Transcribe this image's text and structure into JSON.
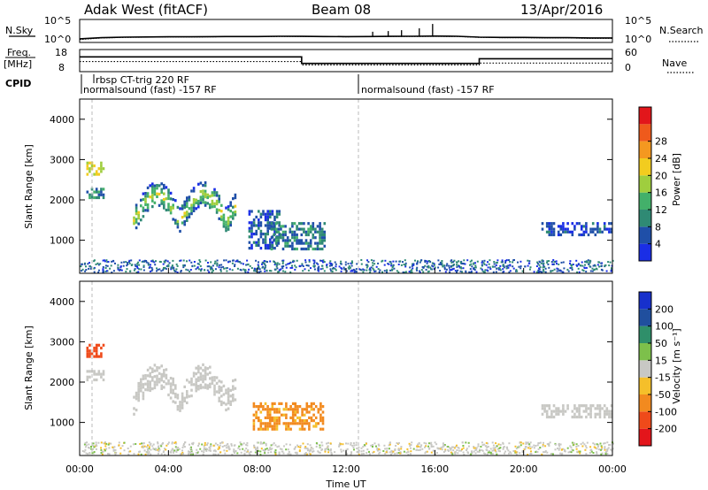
{
  "header": {
    "station": "Adak West (fitACF)",
    "beam": "Beam 08",
    "date": "13/Apr/2016"
  },
  "legend_labels": {
    "nsky": "N.Sky",
    "nsearch": "N.Search",
    "freq": "Freq.",
    "freq_unit": "[MHz]",
    "nave": "Nave",
    "cpid": "CPID"
  },
  "mini_axes": {
    "nsky_ticks": [
      "10^5",
      "10^0"
    ],
    "nsearch_ticks": [
      "10^5",
      "10^0"
    ],
    "freq_ticks": [
      "18",
      "8"
    ],
    "nave_ticks": [
      "60",
      "0"
    ]
  },
  "cpid_labels": [
    {
      "text": "rbsp CT-trig 220 RF",
      "start_hour": 0.6
    },
    {
      "text": "normalsound (fast) -157 RF",
      "start_hour": 0.0
    },
    {
      "text": "normalsound (fast) -157 RF",
      "start_hour": 12.6
    }
  ],
  "colors": {
    "power": [
      "#1a2ee6",
      "#1f4fa8",
      "#2f8a74",
      "#43b06a",
      "#9fce3e",
      "#f2cc1f",
      "#f49820",
      "#ef5a1c",
      "#e2161b"
    ],
    "velocity": [
      "#e3151b",
      "#ef4a1a",
      "#f28a1f",
      "#f5bf2a",
      "#c8c8c4",
      "#7dc04b",
      "#2f8f6a",
      "#204f9e",
      "#1730cc"
    ]
  },
  "chart_data": [
    {
      "type": "line",
      "panel": "noise",
      "ylabel_left": "N.Sky",
      "ylabel_right": "N.Search",
      "scale": "log",
      "ylim": [
        1,
        100000
      ],
      "series": [
        {
          "values_hourly": [
            3,
            6,
            8,
            9,
            10,
            10,
            11,
            12,
            12,
            14,
            13,
            12,
            11,
            12,
            13,
            14,
            15,
            14,
            8,
            7,
            7,
            6,
            6,
            5,
            5
          ]
        },
        {
          "values_hourly": [
            2,
            5,
            7,
            8,
            9,
            9,
            10,
            11,
            11,
            12,
            12,
            11,
            10,
            11,
            12,
            12,
            13,
            12,
            7,
            6,
            6,
            5,
            5,
            4,
            4
          ]
        }
      ],
      "spikes": [
        {
          "hour": 13.2,
          "value": 200
        },
        {
          "hour": 13.9,
          "value": 300
        },
        {
          "hour": 14.5,
          "value": 500
        },
        {
          "hour": 15.3,
          "value": 1500
        },
        {
          "hour": 15.9,
          "value": 20000
        }
      ]
    },
    {
      "type": "line",
      "panel": "frequency",
      "ylabel_left": "Freq. [MHz]",
      "ylabel_right": "Nave",
      "ylim_left": [
        8,
        18
      ],
      "ylim_right": [
        0,
        60
      ],
      "freq_steps": [
        {
          "from": 0,
          "to": 10.0,
          "value": 15.0
        },
        {
          "from": 10.0,
          "to": 18.0,
          "value": 11.5
        },
        {
          "from": 18.0,
          "to": 24,
          "value": 14.0
        }
      ],
      "nave_steps": [
        {
          "from": 0,
          "to": 10.0,
          "value": 27
        },
        {
          "from": 10.0,
          "to": 18.0,
          "value": 16
        },
        {
          "from": 18.0,
          "to": 24,
          "value": 22
        }
      ]
    },
    {
      "type": "heatmap",
      "panel": "power",
      "xlabel": "",
      "ylabel": "Slant Range [km]",
      "xlim": [
        0,
        24
      ],
      "ylim": [
        180,
        4500
      ],
      "yticks": [
        1000,
        2000,
        3000,
        4000
      ],
      "colorbar_label": "Power [dB]",
      "colorbar_ticks": [
        4,
        8,
        12,
        16,
        20,
        24,
        28
      ],
      "regions": [
        {
          "h": [
            0.3,
            1.1
          ],
          "r": [
            2650,
            2950
          ],
          "val": 20
        },
        {
          "h": [
            0.3,
            1.1
          ],
          "r": [
            2050,
            2300
          ],
          "val": 10
        },
        {
          "h": [
            2.4,
            7.0
          ],
          "r": [
            1350,
            2300
          ],
          "val": 12,
          "shape": "double-arc"
        },
        {
          "h": [
            7.6,
            9.0
          ],
          "r": [
            800,
            1750
          ],
          "val": 6
        },
        {
          "h": [
            8.6,
            11.0
          ],
          "r": [
            800,
            1450
          ],
          "val": 9
        },
        {
          "h": [
            20.8,
            24.0
          ],
          "r": [
            1100,
            1450
          ],
          "val": 5
        }
      ]
    },
    {
      "type": "heatmap",
      "panel": "velocity",
      "xlabel": "Time UT",
      "ylabel": "Slant Range [km]",
      "xlim": [
        0,
        24
      ],
      "ylim": [
        180,
        4500
      ],
      "yticks": [
        1000,
        2000,
        3000,
        4000
      ],
      "xticks": [
        "00:00",
        "04:00",
        "08:00",
        "12:00",
        "16:00",
        "20:00",
        "00:00"
      ],
      "colorbar_label": "Velocity [m s⁻¹]",
      "colorbar_ticks": [
        -200,
        -100,
        -50,
        -15,
        15,
        50,
        100,
        200
      ],
      "regions": [
        {
          "h": [
            0.3,
            1.1
          ],
          "r": [
            2650,
            2950
          ],
          "val": -150
        },
        {
          "h": [
            0.3,
            1.1
          ],
          "r": [
            2050,
            2300
          ],
          "val": 0
        },
        {
          "h": [
            2.4,
            7.0
          ],
          "r": [
            1350,
            2300
          ],
          "val": 0,
          "shape": "double-arc"
        },
        {
          "h": [
            7.8,
            11.0
          ],
          "r": [
            800,
            1500
          ],
          "val": -60
        },
        {
          "h": [
            20.8,
            24.0
          ],
          "r": [
            1100,
            1450
          ],
          "val": 0
        }
      ]
    }
  ]
}
